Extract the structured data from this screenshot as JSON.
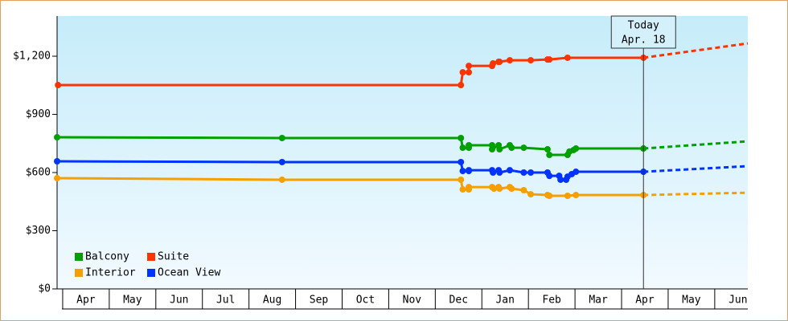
{
  "chart_data": {
    "type": "line",
    "xlim": [
      -0.12,
      14.71
    ],
    "xticks": [
      {
        "value": 0.5,
        "label": "Apr"
      },
      {
        "value": 1.5,
        "label": "May"
      },
      {
        "value": 2.5,
        "label": "Jun"
      },
      {
        "value": 3.5,
        "label": "Jul"
      },
      {
        "value": 4.5,
        "label": "Aug"
      },
      {
        "value": 5.5,
        "label": "Sep"
      },
      {
        "value": 6.5,
        "label": "Oct"
      },
      {
        "value": 7.5,
        "label": "Nov"
      },
      {
        "value": 8.5,
        "label": "Dec"
      },
      {
        "value": 9.5,
        "label": "Jan"
      },
      {
        "value": 10.5,
        "label": "Feb"
      },
      {
        "value": 11.5,
        "label": "Mar"
      },
      {
        "value": 12.5,
        "label": "Apr"
      },
      {
        "value": 13.5,
        "label": "May"
      },
      {
        "value": 14.5,
        "label": "Jun"
      }
    ],
    "ylim": [
      0,
      1400
    ],
    "yticks": [
      {
        "value": 0,
        "label": "$0"
      },
      {
        "value": 300,
        "label": "$300"
      },
      {
        "value": 600,
        "label": "$600"
      },
      {
        "value": 900,
        "label": "$900"
      },
      {
        "value": 1200,
        "label": "$1,200"
      }
    ],
    "grid": false,
    "legend": "lower-left",
    "today": {
      "x": 12.47,
      "label": [
        "Today",
        "Apr. 18"
      ]
    },
    "series": [
      {
        "name": "Balcony",
        "color": "#00a000",
        "x": [
          -0.12,
          4.71,
          8.55,
          8.59,
          8.72,
          8.72,
          9.22,
          9.22,
          9.36,
          9.38,
          9.6,
          9.64,
          9.9,
          10.41,
          10.45,
          10.84,
          10.88,
          10.97,
          11.02,
          12.47
        ],
        "values": [
          782,
          778,
          778,
          728,
          728,
          741,
          741,
          720,
          741,
          720,
          741,
          728,
          728,
          720,
          691,
          691,
          708,
          716,
          724,
          724
        ],
        "forecast": {
          "x": [
            12.47,
            14.71
          ],
          "values": [
            724,
            761
          ]
        }
      },
      {
        "name": "Suite",
        "color": "#ff3300",
        "x": [
          -0.1,
          8.55,
          8.59,
          8.72,
          8.72,
          9.22,
          9.24,
          9.36,
          9.38,
          9.6,
          10.05,
          10.41,
          10.45,
          10.84,
          12.47
        ],
        "values": [
          1051,
          1051,
          1117,
          1117,
          1150,
          1150,
          1163,
          1171,
          1171,
          1179,
          1179,
          1183,
          1183,
          1192,
          1192
        ],
        "forecast": {
          "x": [
            12.47,
            14.71
          ],
          "values": [
            1192,
            1266
          ]
        }
      },
      {
        "name": "Interior",
        "color": "#f5a000",
        "x": [
          -0.12,
          4.71,
          8.55,
          8.59,
          8.72,
          8.72,
          9.22,
          9.26,
          9.36,
          9.38,
          9.6,
          9.64,
          9.9,
          10.05,
          10.41,
          10.45,
          10.84,
          11.02,
          12.47
        ],
        "values": [
          571,
          563,
          563,
          513,
          513,
          525,
          525,
          517,
          525,
          517,
          525,
          517,
          509,
          488,
          484,
          480,
          480,
          484,
          484
        ],
        "forecast": {
          "x": [
            12.47,
            14.71
          ],
          "values": [
            484,
            496
          ]
        }
      },
      {
        "name": "Ocean View",
        "color": "#0033ff",
        "x": [
          -0.12,
          4.71,
          8.55,
          8.59,
          8.72,
          8.72,
          9.22,
          9.24,
          9.36,
          9.38,
          9.6,
          9.9,
          10.05,
          10.41,
          10.45,
          10.66,
          10.69,
          10.81,
          10.84,
          10.93,
          11.02,
          12.47
        ],
        "values": [
          658,
          654,
          654,
          608,
          608,
          612,
          612,
          600,
          612,
          600,
          612,
          600,
          600,
          600,
          583,
          583,
          563,
          563,
          579,
          592,
          604,
          604
        ],
        "forecast": {
          "x": [
            12.47,
            14.71
          ],
          "values": [
            604,
            633
          ]
        }
      }
    ]
  }
}
